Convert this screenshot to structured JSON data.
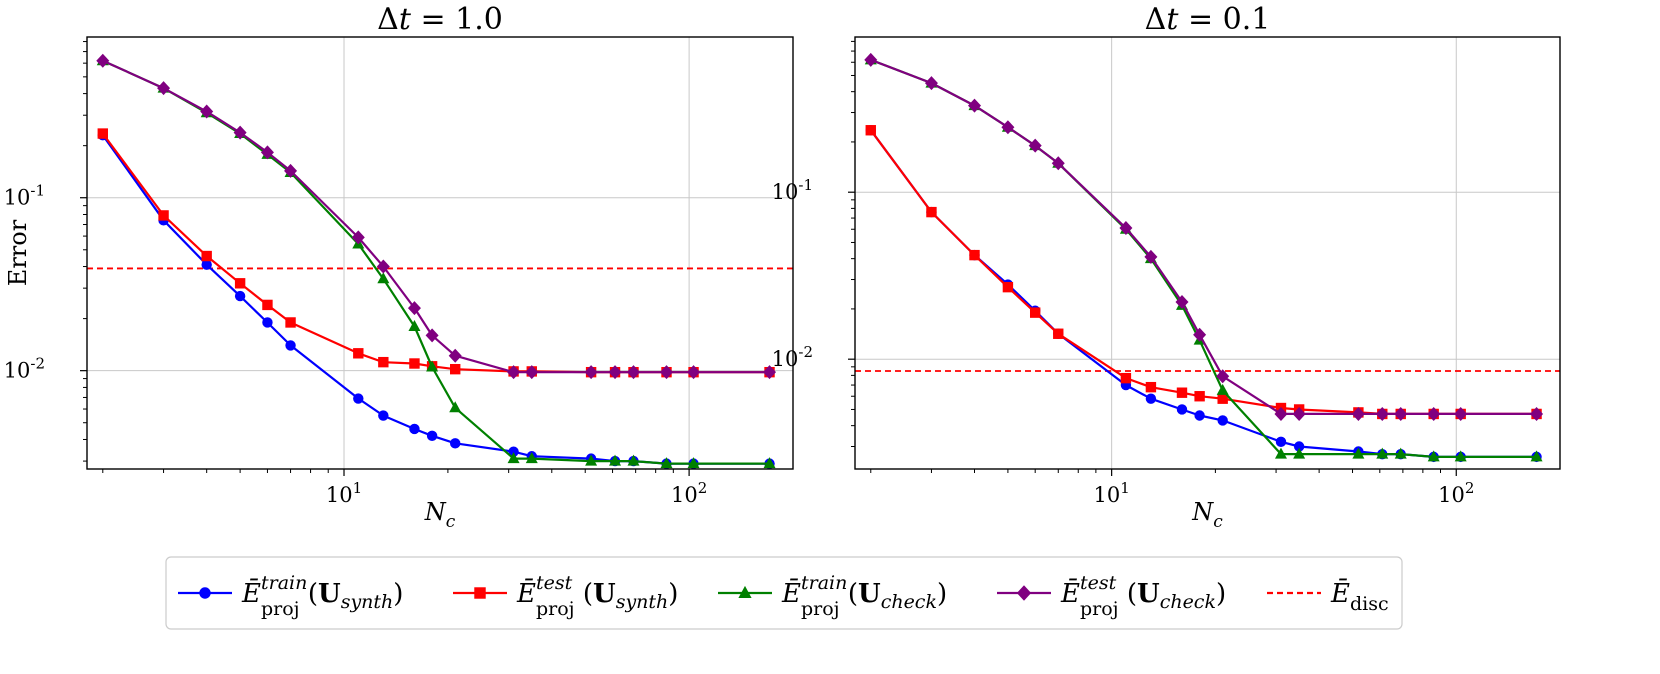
{
  "chart_data": [
    {
      "type": "line",
      "title": "Δt = 1.0",
      "xlabel": "N_c",
      "ylabel": "Error",
      "xscale": "log",
      "yscale": "log",
      "xlim": [
        1.8,
        200
      ],
      "ylim": [
        0.0027,
        0.85
      ],
      "xticks": [
        10,
        100
      ],
      "xtick_labels": [
        "10^1",
        "10^2"
      ],
      "yticks": [
        0.01,
        0.1
      ],
      "ytick_labels": [
        "10^-2",
        "10^-1"
      ],
      "grid": true,
      "x": [
        2,
        3,
        4,
        5,
        6,
        7,
        11,
        13,
        16,
        18,
        21,
        31,
        35,
        52,
        61,
        69,
        86,
        103,
        171
      ],
      "series": [
        {
          "name": "E_proj^train (U_synth)",
          "color": "#0000ff",
          "marker": "circle",
          "values": [
            0.23,
            0.074,
            0.041,
            0.027,
            0.019,
            0.014,
            0.0069,
            0.0055,
            0.0046,
            0.0042,
            0.0038,
            0.0034,
            0.0032,
            0.0031,
            0.003,
            0.003,
            0.0029,
            0.0029,
            0.0029
          ]
        },
        {
          "name": "E_proj^test (U_synth)",
          "color": "#ff0000",
          "marker": "square",
          "values": [
            0.235,
            0.079,
            0.046,
            0.032,
            0.024,
            0.019,
            0.0126,
            0.0112,
            0.011,
            0.0106,
            0.0102,
            0.0099,
            0.0099,
            0.0098,
            0.0098,
            0.0098,
            0.0098,
            0.0098,
            0.0098
          ]
        },
        {
          "name": "E_proj^train (U_check)",
          "color": "#008000",
          "marker": "triangle",
          "values": [
            0.62,
            0.43,
            0.31,
            0.235,
            0.178,
            0.14,
            0.054,
            0.034,
            0.018,
            0.0105,
            0.0061,
            0.0031,
            0.0031,
            0.003,
            0.003,
            0.003,
            0.0029,
            0.0029,
            0.0029
          ]
        },
        {
          "name": "E_proj^test (U_check)",
          "color": "#800080",
          "marker": "diamond",
          "values": [
            0.62,
            0.43,
            0.315,
            0.238,
            0.183,
            0.143,
            0.059,
            0.04,
            0.023,
            0.016,
            0.0122,
            0.0098,
            0.0098,
            0.0098,
            0.0098,
            0.0098,
            0.0098,
            0.0098,
            0.0098
          ]
        }
      ],
      "hline": {
        "name": "E_disc",
        "value": 0.039,
        "color": "#ff0000",
        "style": "dashed"
      }
    },
    {
      "type": "line",
      "title": "Δt = 0.1",
      "xlabel": "N_c",
      "ylabel": "",
      "xscale": "log",
      "yscale": "log",
      "xlim": [
        1.8,
        200
      ],
      "ylim": [
        0.0022,
        0.85
      ],
      "xticks": [
        10,
        100
      ],
      "xtick_labels": [
        "10^1",
        "10^2"
      ],
      "yticks": [
        0.01,
        0.1
      ],
      "ytick_labels": [
        "10^-2",
        "10^-1"
      ],
      "grid": true,
      "x": [
        2,
        3,
        4,
        5,
        6,
        7,
        11,
        13,
        16,
        18,
        21,
        31,
        35,
        52,
        61,
        69,
        86,
        103,
        171
      ],
      "series": [
        {
          "name": "E_proj^train (U_synth)",
          "color": "#0000ff",
          "marker": "circle",
          "values": [
            0.235,
            0.076,
            0.042,
            0.028,
            0.0195,
            0.0142,
            0.007,
            0.0058,
            0.005,
            0.0046,
            0.0043,
            0.0032,
            0.003,
            0.0028,
            0.0027,
            0.0027,
            0.0026,
            0.0026,
            0.0026
          ]
        },
        {
          "name": "E_proj^test (U_synth)",
          "color": "#ff0000",
          "marker": "square",
          "values": [
            0.235,
            0.076,
            0.042,
            0.027,
            0.019,
            0.0142,
            0.0077,
            0.0068,
            0.0063,
            0.006,
            0.0058,
            0.0051,
            0.005,
            0.0048,
            0.0047,
            0.0047,
            0.0047,
            0.0047,
            0.0047
          ]
        },
        {
          "name": "E_proj^train (U_check)",
          "color": "#008000",
          "marker": "triangle",
          "values": [
            0.62,
            0.45,
            0.33,
            0.245,
            0.19,
            0.149,
            0.06,
            0.04,
            0.021,
            0.013,
            0.0065,
            0.0027,
            0.0027,
            0.0027,
            0.0027,
            0.0027,
            0.0026,
            0.0026,
            0.0026
          ]
        },
        {
          "name": "E_proj^test (U_check)",
          "color": "#800080",
          "marker": "diamond",
          "values": [
            0.62,
            0.45,
            0.33,
            0.245,
            0.19,
            0.149,
            0.061,
            0.041,
            0.022,
            0.014,
            0.0079,
            0.0047,
            0.0047,
            0.0047,
            0.0047,
            0.0047,
            0.0047,
            0.0047,
            0.0047
          ]
        }
      ],
      "hline": {
        "name": "E_disc",
        "value": 0.0085,
        "color": "#ff0000",
        "style": "dashed"
      }
    }
  ],
  "legend": {
    "location": "bottom-center",
    "entries": [
      {
        "base": "Ē",
        "sup": "train",
        "sub": "proj",
        "arg": "U",
        "argsub": "synth",
        "color": "#0000ff",
        "marker": "circle",
        "style": "solid"
      },
      {
        "base": "Ē",
        "sup": "test",
        "sub": "proj",
        "arg": "U",
        "argsub": "synth",
        "color": "#ff0000",
        "marker": "square",
        "style": "solid"
      },
      {
        "base": "Ē",
        "sup": "train",
        "sub": "proj",
        "arg": "U",
        "argsub": "check",
        "color": "#008000",
        "marker": "triangle",
        "style": "solid"
      },
      {
        "base": "Ē",
        "sup": "test",
        "sub": "proj",
        "arg": "U",
        "argsub": "check",
        "color": "#800080",
        "marker": "diamond",
        "style": "solid"
      },
      {
        "base": "Ē",
        "sup": "",
        "sub": "disc",
        "arg": "",
        "argsub": "",
        "color": "#ff0000",
        "marker": "none",
        "style": "dashed"
      }
    ]
  }
}
